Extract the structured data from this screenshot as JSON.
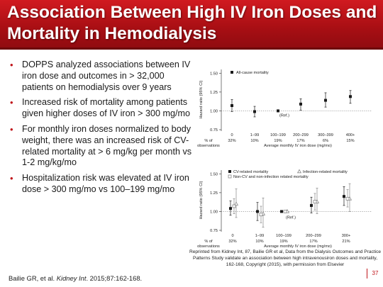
{
  "slide": {
    "title": "Association Between High IV Iron Doses and Mortality in Hemodialysis",
    "page_number": "37",
    "citation": {
      "authors": "Bailie GR, et al.",
      "journal": "Kidney Int",
      "rest": ". 2015;87:162-168."
    },
    "caption": "Reprinted from Kidney Int, 87, Bailie GR et al, Data from the Dialysis Outcomes and Practice Patterns Study validate an association between high intravenousiron doses and mortality, 162-168, Copyright (2015), with permission from Elsevier"
  },
  "bullets": [
    "DOPPS analyzed associations between IV iron dose and outcomes in > 32,000 patients on hemodialysis over 9 years",
    "Increased risk of mortality among patients given higher doses of IV iron > 300 mg/mo",
    "For monthly iron doses normalized to body weight, there was an increased risk of CV-related mortality at > 6 mg/kg per month vs 1-2 mg/kg/mo",
    "Hospitalization risk was elevated at IV iron dose > 300 mg/mo vs 100–199 mg/mo"
  ],
  "colors": {
    "title_bar": "#b3131a",
    "bullet_marker": "#c0141a",
    "marker_dark": "#1a1a1a",
    "marker_gray": "#888888"
  },
  "chart_data": [
    {
      "type": "scatter",
      "xlabel": "Average monthly IV iron dose (mg/mo)",
      "ylabel": "Hazard ratio (95% CI)",
      "ylim": [
        0.75,
        1.55
      ],
      "yticks": [
        "0.75",
        "1.00",
        "1.25",
        "1.50"
      ],
      "categories": [
        "0",
        "1–99",
        "100–199",
        "200–299",
        "300–399",
        "400+"
      ],
      "reference_category": "100–199",
      "reference_label": "(Ref.)",
      "observations_label": [
        "% of",
        "observations"
      ],
      "observations_pct": [
        "32%",
        "10%",
        "19%",
        "17%",
        "6%",
        "15%"
      ],
      "series": [
        {
          "name": "All-cause mortality",
          "marker": "filled-square",
          "values": [
            1.07,
            0.99,
            1.0,
            1.09,
            1.14,
            1.19
          ],
          "ci_low": [
            0.99,
            0.92,
            1.0,
            1.01,
            1.05,
            1.1
          ],
          "ci_high": [
            1.15,
            1.06,
            1.0,
            1.16,
            1.24,
            1.27
          ]
        }
      ],
      "legend_position": "top-left"
    },
    {
      "type": "scatter",
      "xlabel": "Average monthly IV iron dose (mg/mo)",
      "ylabel": "Hazard ratio (95% CI)",
      "ylim": [
        0.75,
        1.55
      ],
      "yticks": [
        "0.75",
        "1.00",
        "1.25",
        "1.50"
      ],
      "categories": [
        "0",
        "1–99",
        "100–199",
        "200–299",
        "300+"
      ],
      "reference_category": "100–199",
      "reference_label": "(Ref.)",
      "observations_label": [
        "% of",
        "observations"
      ],
      "observations_pct": [
        "32%",
        "10%",
        "19%",
        "17%",
        "21%"
      ],
      "series": [
        {
          "name": "CV-related mortality",
          "marker": "filled-square",
          "values": [
            1.04,
            1.0,
            1.0,
            1.08,
            1.2
          ],
          "ci_low": [
            0.95,
            0.88,
            1.0,
            0.98,
            1.08
          ],
          "ci_high": [
            1.14,
            1.12,
            1.0,
            1.19,
            1.33
          ]
        },
        {
          "name": "Infection-related mortality",
          "marker": "open-triangle",
          "values": [
            1.1,
            0.97,
            1.0,
            1.13,
            1.17
          ],
          "ci_low": [
            0.92,
            0.79,
            1.0,
            0.97,
            1.0
          ],
          "ci_high": [
            1.3,
            1.18,
            1.0,
            1.31,
            1.37
          ]
        },
        {
          "name": "Non-CV and non-infection related mortality",
          "marker": "open-square",
          "values": [
            1.07,
            0.96,
            1.0,
            1.13,
            1.17
          ],
          "ci_low": [
            0.97,
            0.85,
            1.0,
            1.02,
            1.06
          ],
          "ci_high": [
            1.17,
            1.07,
            1.0,
            1.24,
            1.29
          ]
        }
      ],
      "legend_position": "top"
    }
  ]
}
